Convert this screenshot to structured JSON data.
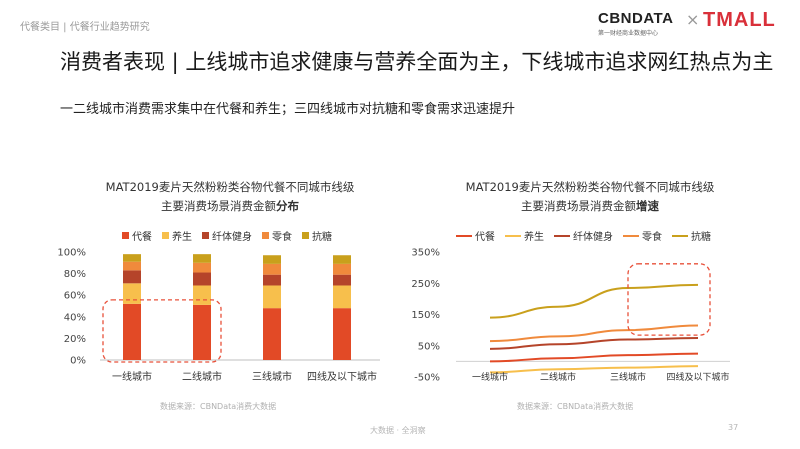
{
  "header": {
    "breadcrumb": "代餐类目 | 代餐行业趋势研究",
    "cbn_logo": "CBNDATA",
    "cbn_tagline": "第一财经商业数据中心",
    "separator": "×",
    "tmall_logo": "TMALL"
  },
  "title": "消费者表现 | 上线城市追求健康与营养全面为主，下线城市追求网红热点为主",
  "subtitle": "一二线城市消费需求集中在代餐和养生；三四线城市对抗糖和零食需求迅速提升",
  "left_chart_title_line1": "MAT2019麦片天然粉粉类谷物代餐不同城市线级",
  "left_chart_title_line2_prefix": "主要消费场景消费金额",
  "left_chart_title_line2_bold": "分布",
  "right_chart_title_line1": "MAT2019麦片天然粉粉类谷物代餐不同城市线级",
  "right_chart_title_line2_prefix": "主要消费场景消费金额",
  "right_chart_title_line2_bold": "增速",
  "source_left": "数据来源：CBNData消费大数据",
  "source_right": "数据来源：CBNData消费大数据",
  "footer": "大数据 · 全洞察",
  "page_number": "37",
  "colors": {
    "代餐": "#e24a26",
    "养生": "#f7bf4c",
    "纤体健身": "#b5442a",
    "零食": "#f08a3c",
    "抗糖": "#c9a01c",
    "highlight": "#e8503a"
  },
  "chart_data": [
    {
      "type": "bar",
      "stacked": true,
      "categories": [
        "一线城市",
        "二线城市",
        "三线城市",
        "四线及以下城市"
      ],
      "series": [
        {
          "name": "代餐",
          "values": [
            52,
            51,
            48,
            48
          ]
        },
        {
          "name": "养生",
          "values": [
            19,
            18,
            21,
            21
          ]
        },
        {
          "name": "纤体健身",
          "values": [
            12,
            12,
            10,
            10
          ]
        },
        {
          "name": "零食",
          "values": [
            8,
            9,
            10,
            10
          ]
        },
        {
          "name": "抗糖",
          "values": [
            7,
            8,
            8,
            8
          ]
        }
      ],
      "yticks": [
        "0%",
        "20%",
        "40%",
        "60%",
        "80%",
        "100%"
      ],
      "ylim": [
        0,
        100
      ],
      "legend": "top",
      "highlight_categories": [
        "一线城市",
        "二线城市"
      ],
      "highlight_series": "代餐"
    },
    {
      "type": "line",
      "categories": [
        "一线城市",
        "二线城市",
        "三线城市",
        "四线及以下城市"
      ],
      "series": [
        {
          "name": "代餐",
          "values": [
            0,
            10,
            20,
            25
          ]
        },
        {
          "name": "养生",
          "values": [
            -35,
            -25,
            -20,
            -15
          ]
        },
        {
          "name": "纤体健身",
          "values": [
            40,
            55,
            70,
            75
          ]
        },
        {
          "name": "零食",
          "values": [
            65,
            80,
            100,
            115
          ]
        },
        {
          "name": "抗糖",
          "values": [
            140,
            175,
            235,
            245
          ]
        }
      ],
      "yticks": [
        "-50%",
        "50%",
        "150%",
        "250%",
        "350%"
      ],
      "ylim": [
        -50,
        350
      ],
      "legend": "top",
      "highlight_categories": [
        "三线城市",
        "四线及以下城市"
      ],
      "highlight_series": [
        "抗糖",
        "零食"
      ]
    }
  ]
}
